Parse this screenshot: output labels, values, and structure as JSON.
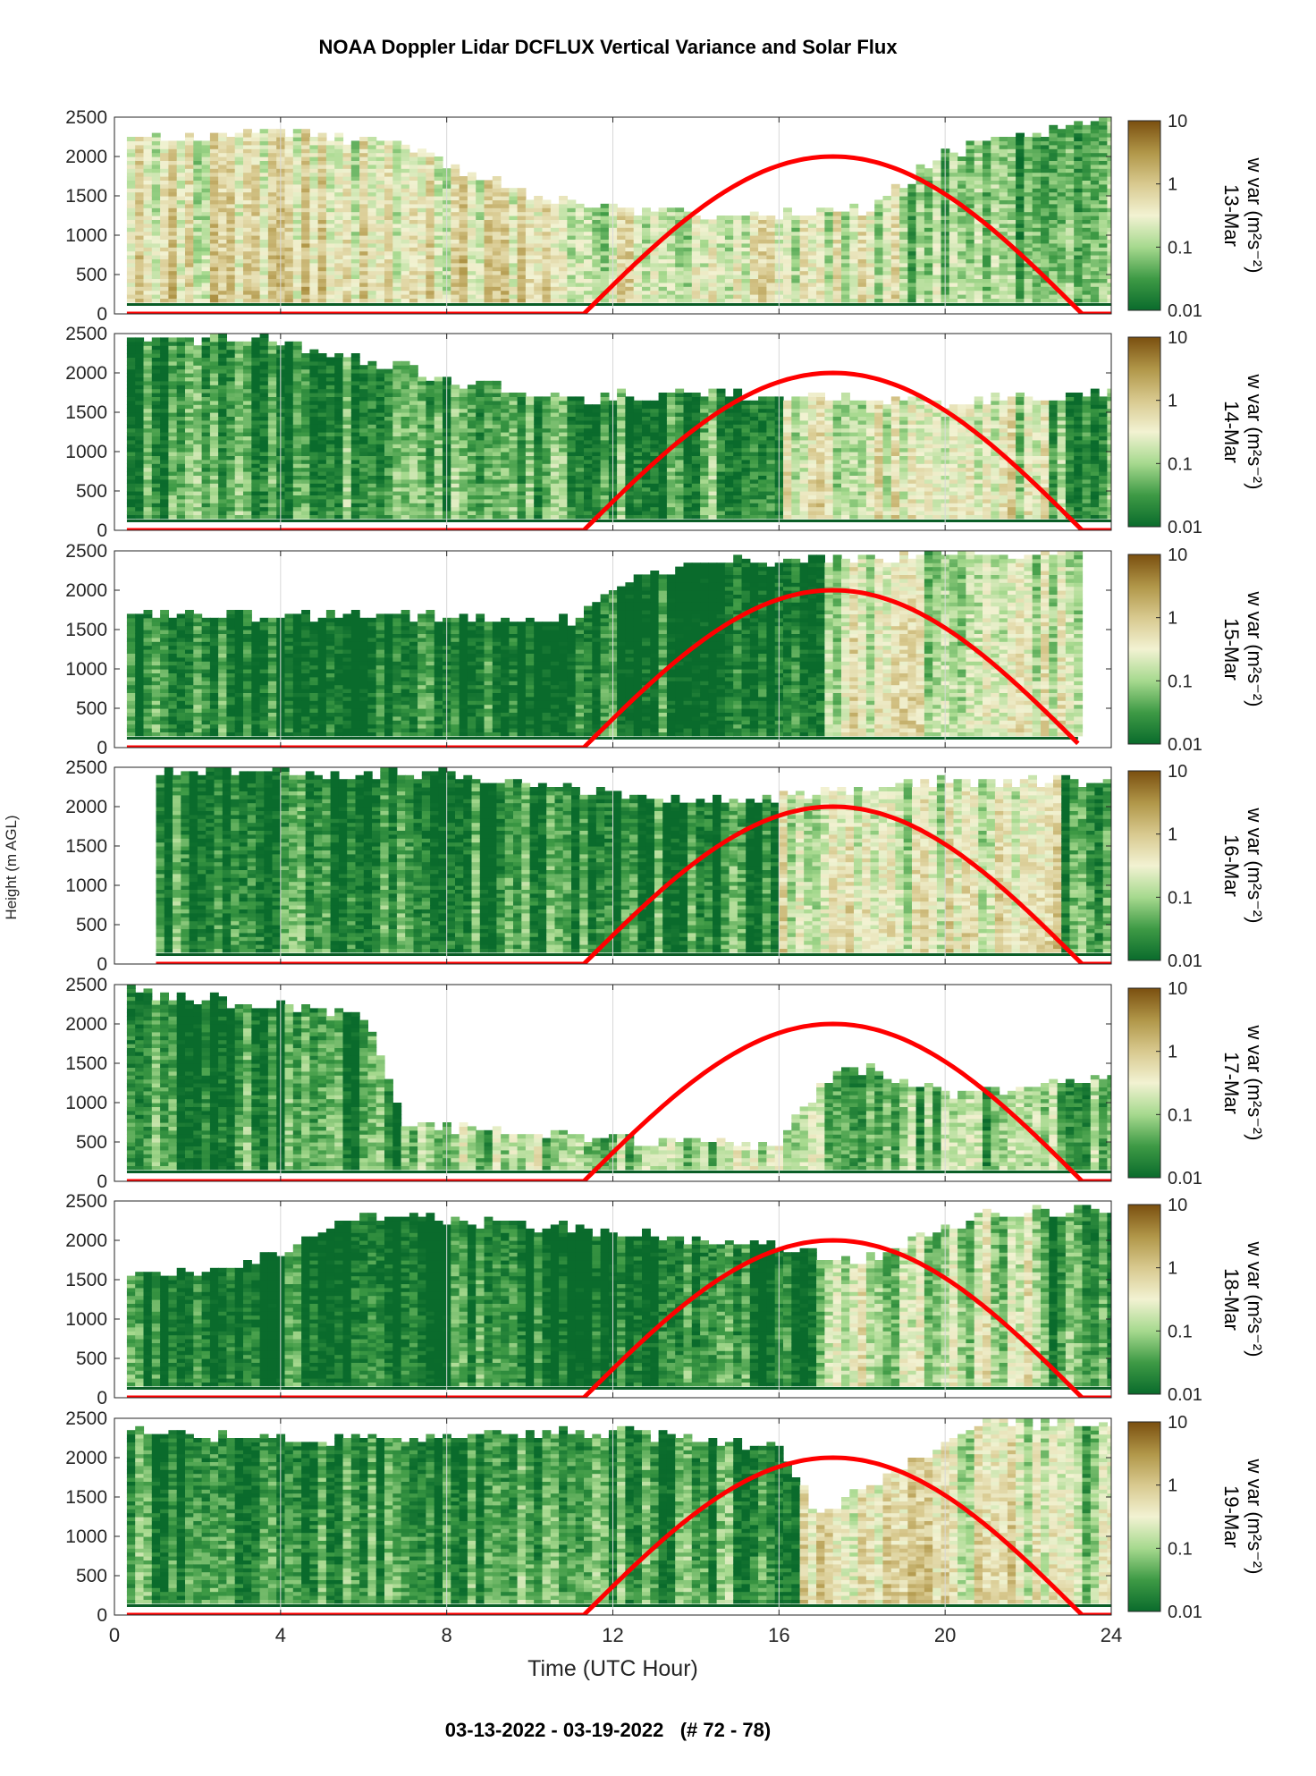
{
  "title": "NOAA Doppler Lidar DCFLUX Vertical Variance and Solar Flux",
  "footer": "03-13-2022 - 03-19-2022   (# 72 - 78)",
  "chart_data": {
    "type": "heatmap",
    "xlabel": "Time (UTC Hour)",
    "ylabel": "Height (m AGL)",
    "xlim": [
      0,
      24
    ],
    "ylim": [
      0,
      2500
    ],
    "xticks": [
      0,
      4,
      8,
      12,
      16,
      20,
      24
    ],
    "yticks": [
      0,
      500,
      1000,
      1500,
      2000,
      2500
    ],
    "grid": true,
    "colorbar": {
      "label": "w var (m²s⁻²)",
      "scale": "log",
      "range": [
        0.01,
        10
      ],
      "ticks": [
        "0.01",
        "0.1",
        "1",
        "10"
      ],
      "colors": [
        "#0a6b2c",
        "#3e9a45",
        "#a6d98e",
        "#f2f2d2",
        "#d8c98f",
        "#b09648",
        "#7a4f0f"
      ]
    },
    "solar_flux_color": "#ff0000",
    "solar_flux": {
      "sunrise_hour": 11.3,
      "sunset_hour": 23.3,
      "peak_hour": 17.3,
      "peak_on_height_axis": 2000
    },
    "panels": [
      {
        "date": "13-Mar",
        "data_start": 0.3,
        "data_end": 24,
        "regime": [
          {
            "from": 0.3,
            "to": 11.5,
            "mean_w_var": 0.6
          },
          {
            "from": 11.5,
            "to": 19,
            "mean_w_var": 0.3
          },
          {
            "from": 19,
            "to": 24,
            "mean_w_var": 0.08
          }
        ],
        "top_height": [
          [
            0,
            2200
          ],
          [
            4,
            2300
          ],
          [
            7,
            2100
          ],
          [
            10,
            1500
          ],
          [
            12,
            1300
          ],
          [
            15,
            1200
          ],
          [
            18,
            1300
          ],
          [
            20,
            2000
          ],
          [
            24,
            2500
          ]
        ]
      },
      {
        "date": "14-Mar",
        "data_start": 0.3,
        "data_end": 24,
        "regime": [
          {
            "from": 0.3,
            "to": 16,
            "mean_w_var": 0.04
          },
          {
            "from": 16,
            "to": 22.5,
            "mean_w_var": 0.3
          },
          {
            "from": 22.5,
            "to": 24,
            "mean_w_var": 0.05
          }
        ],
        "top_height": [
          [
            0,
            2450
          ],
          [
            4,
            2400
          ],
          [
            8,
            1900
          ],
          [
            11,
            1650
          ],
          [
            13,
            1700
          ],
          [
            16,
            1700
          ],
          [
            20,
            1600
          ],
          [
            24,
            1700
          ]
        ]
      },
      {
        "date": "15-Mar",
        "data_start": 0.3,
        "data_end": 23.2,
        "regime": [
          {
            "from": 0.3,
            "to": 17,
            "mean_w_var": 0.02
          },
          {
            "from": 17,
            "to": 23.2,
            "mean_w_var": 0.3
          }
        ],
        "top_height": [
          [
            0,
            1700
          ],
          [
            6,
            1650
          ],
          [
            11,
            1600
          ],
          [
            12,
            2000
          ],
          [
            14,
            2300
          ],
          [
            17,
            2400
          ],
          [
            23.2,
            2450
          ]
        ]
      },
      {
        "date": "16-Mar",
        "data_start": 1,
        "data_end": 24,
        "regime": [
          {
            "from": 1,
            "to": 16,
            "mean_w_var": 0.03
          },
          {
            "from": 16,
            "to": 22.8,
            "mean_w_var": 0.4
          },
          {
            "from": 22.8,
            "to": 24,
            "mean_w_var": 0.06
          }
        ],
        "top_height": [
          [
            1,
            2450
          ],
          [
            8,
            2400
          ],
          [
            12,
            2150
          ],
          [
            14,
            2050
          ],
          [
            16,
            2100
          ],
          [
            20,
            2300
          ],
          [
            24,
            2300
          ]
        ]
      },
      {
        "date": "17-Mar",
        "data_start": 0.3,
        "data_end": 24,
        "regime": [
          {
            "from": 0.3,
            "to": 7,
            "mean_w_var": 0.03
          },
          {
            "from": 7,
            "to": 17,
            "mean_w_var": 0.12
          },
          {
            "from": 17,
            "to": 24,
            "mean_w_var": 0.08
          }
        ],
        "top_height": [
          [
            0,
            2400
          ],
          [
            6,
            2100
          ],
          [
            7,
            700
          ],
          [
            12,
            500
          ],
          [
            16,
            450
          ],
          [
            17.5,
            1500
          ],
          [
            20,
            1100
          ],
          [
            24,
            1300
          ]
        ]
      },
      {
        "date": "18-Mar",
        "data_start": 0.3,
        "data_end": 24,
        "regime": [
          {
            "from": 0.3,
            "to": 17,
            "mean_w_var": 0.02
          },
          {
            "from": 17,
            "to": 22.5,
            "mean_w_var": 0.25
          },
          {
            "from": 22.5,
            "to": 24,
            "mean_w_var": 0.05
          }
        ],
        "top_height": [
          [
            0,
            1500
          ],
          [
            3,
            1600
          ],
          [
            6,
            2300
          ],
          [
            9,
            2200
          ],
          [
            12,
            2100
          ],
          [
            16,
            1900
          ],
          [
            18,
            1700
          ],
          [
            21,
            2300
          ],
          [
            24,
            2400
          ]
        ]
      },
      {
        "date": "19-Mar",
        "data_start": 0.3,
        "data_end": 24,
        "regime": [
          {
            "from": 0.3,
            "to": 16.5,
            "mean_w_var": 0.04
          },
          {
            "from": 16.5,
            "to": 23,
            "mean_w_var": 0.5
          },
          {
            "from": 23,
            "to": 24,
            "mean_w_var": 0.15
          }
        ],
        "top_height": [
          [
            0,
            2300
          ],
          [
            6,
            2200
          ],
          [
            10,
            2300
          ],
          [
            12,
            2300
          ],
          [
            16,
            2100
          ],
          [
            17,
            1200
          ],
          [
            19,
            1900
          ],
          [
            21,
            2400
          ],
          [
            24,
            2400
          ]
        ]
      }
    ]
  }
}
